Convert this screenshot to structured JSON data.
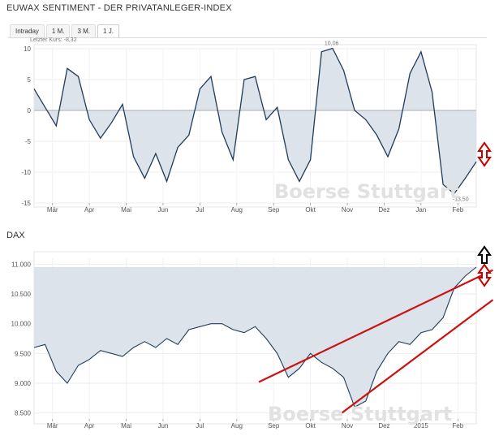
{
  "header": {
    "title": "EUWAX SENTIMENT - DER PRIVATANLEGER-INDEX"
  },
  "tabs": [
    {
      "label": "Intraday",
      "active": false
    },
    {
      "label": "1 M.",
      "active": false
    },
    {
      "label": "3 M.",
      "active": false
    },
    {
      "label": "1 J.",
      "active": true
    }
  ],
  "watermark": "Boerse Stuttgart",
  "chart_data": [
    {
      "type": "area",
      "title": "EUWAX SENTIMENT - DER PRIVATANLEGER-INDEX",
      "last_price_label": "Letzter Kurs: -8,32",
      "ylim": [
        -15,
        10
      ],
      "yticks": [
        10,
        5,
        0,
        -5,
        -10,
        -15
      ],
      "xticks": [
        "Mär",
        "Apr",
        "Mai",
        "Jun",
        "Jul",
        "Aug",
        "Sep",
        "Okt",
        "Nov",
        "Dez",
        "Jan",
        "Feb"
      ],
      "fill_baseline": 0,
      "max_label": "10,06",
      "min_label": "-13,50",
      "grid": true,
      "series": [
        {
          "x": [
            0.0,
            0.3,
            0.6,
            0.9,
            1.2,
            1.5,
            1.8,
            2.1,
            2.4,
            2.7,
            3.0,
            3.3,
            3.6,
            3.9,
            4.2,
            4.5,
            4.8,
            5.1,
            5.4,
            5.7,
            6.0,
            6.3,
            6.6,
            6.9,
            7.2,
            7.5,
            7.8,
            8.1,
            8.4,
            8.7,
            9.0,
            9.3,
            9.6,
            9.9,
            10.2,
            10.5,
            10.8,
            11.1,
            11.4,
            11.7,
            12.0
          ],
          "values": [
            3.5,
            0.5,
            -2.5,
            6.8,
            5.5,
            -1.5,
            -4.5,
            -2.0,
            1.0,
            -7.5,
            -11.0,
            -7.0,
            -11.5,
            -6.0,
            -4.0,
            3.5,
            5.5,
            -3.5,
            -8.0,
            5.0,
            5.5,
            -1.5,
            0.5,
            -8.0,
            -11.5,
            -8.0,
            9.5,
            10.06,
            6.5,
            0.0,
            -1.5,
            -4.0,
            -7.5,
            -3.0,
            6.0,
            9.5,
            3.0,
            -12.0,
            -13.5,
            -11.0,
            -8.32
          ]
        }
      ]
    },
    {
      "type": "area",
      "title": "DAX",
      "ylim": [
        8400,
        11100
      ],
      "yticks": [
        11000,
        10500,
        10000,
        9500,
        9000,
        8500
      ],
      "ytick_labels": [
        "11.000",
        "10.500",
        "10.000",
        "9.500",
        "9.000",
        "8.500"
      ],
      "xticks": [
        "Mär",
        "Apr",
        "Mai",
        "Jun",
        "Jul",
        "Aug",
        "Sep",
        "Okt",
        "Nov",
        "Dez",
        "2015",
        "Feb"
      ],
      "fill_top": 10950,
      "grid": true,
      "series": [
        {
          "x": [
            0.0,
            0.3,
            0.6,
            0.9,
            1.2,
            1.5,
            1.8,
            2.1,
            2.4,
            2.7,
            3.0,
            3.3,
            3.6,
            3.9,
            4.2,
            4.5,
            4.8,
            5.1,
            5.4,
            5.7,
            6.0,
            6.3,
            6.6,
            6.9,
            7.2,
            7.5,
            7.8,
            8.1,
            8.4,
            8.7,
            9.0,
            9.3,
            9.6,
            9.9,
            10.2,
            10.5,
            10.8,
            11.1,
            11.4,
            11.7,
            12.0
          ],
          "values": [
            9600,
            9650,
            9200,
            9000,
            9300,
            9400,
            9550,
            9500,
            9450,
            9600,
            9700,
            9600,
            9750,
            9650,
            9900,
            9950,
            10000,
            10000,
            9900,
            9850,
            9950,
            9750,
            9500,
            9100,
            9250,
            9500,
            9350,
            9250,
            9100,
            8600,
            8700,
            9200,
            9500,
            9700,
            9650,
            9850,
            9900,
            10100,
            10600,
            10800,
            10950
          ]
        }
      ],
      "trend_lines": [
        {
          "x": [
            6.1,
            12.45
          ],
          "values": [
            9020,
            10900
          ]
        },
        {
          "x": [
            8.35,
            12.45
          ],
          "values": [
            8500,
            10400
          ]
        }
      ],
      "annotations": [
        {
          "type": "arrow-up",
          "color": "#000000"
        },
        {
          "type": "double-arrow",
          "color": "#cc0000"
        }
      ]
    }
  ],
  "side_arrows": [
    {
      "type": "double-arrow",
      "color": "#cc0000"
    }
  ]
}
